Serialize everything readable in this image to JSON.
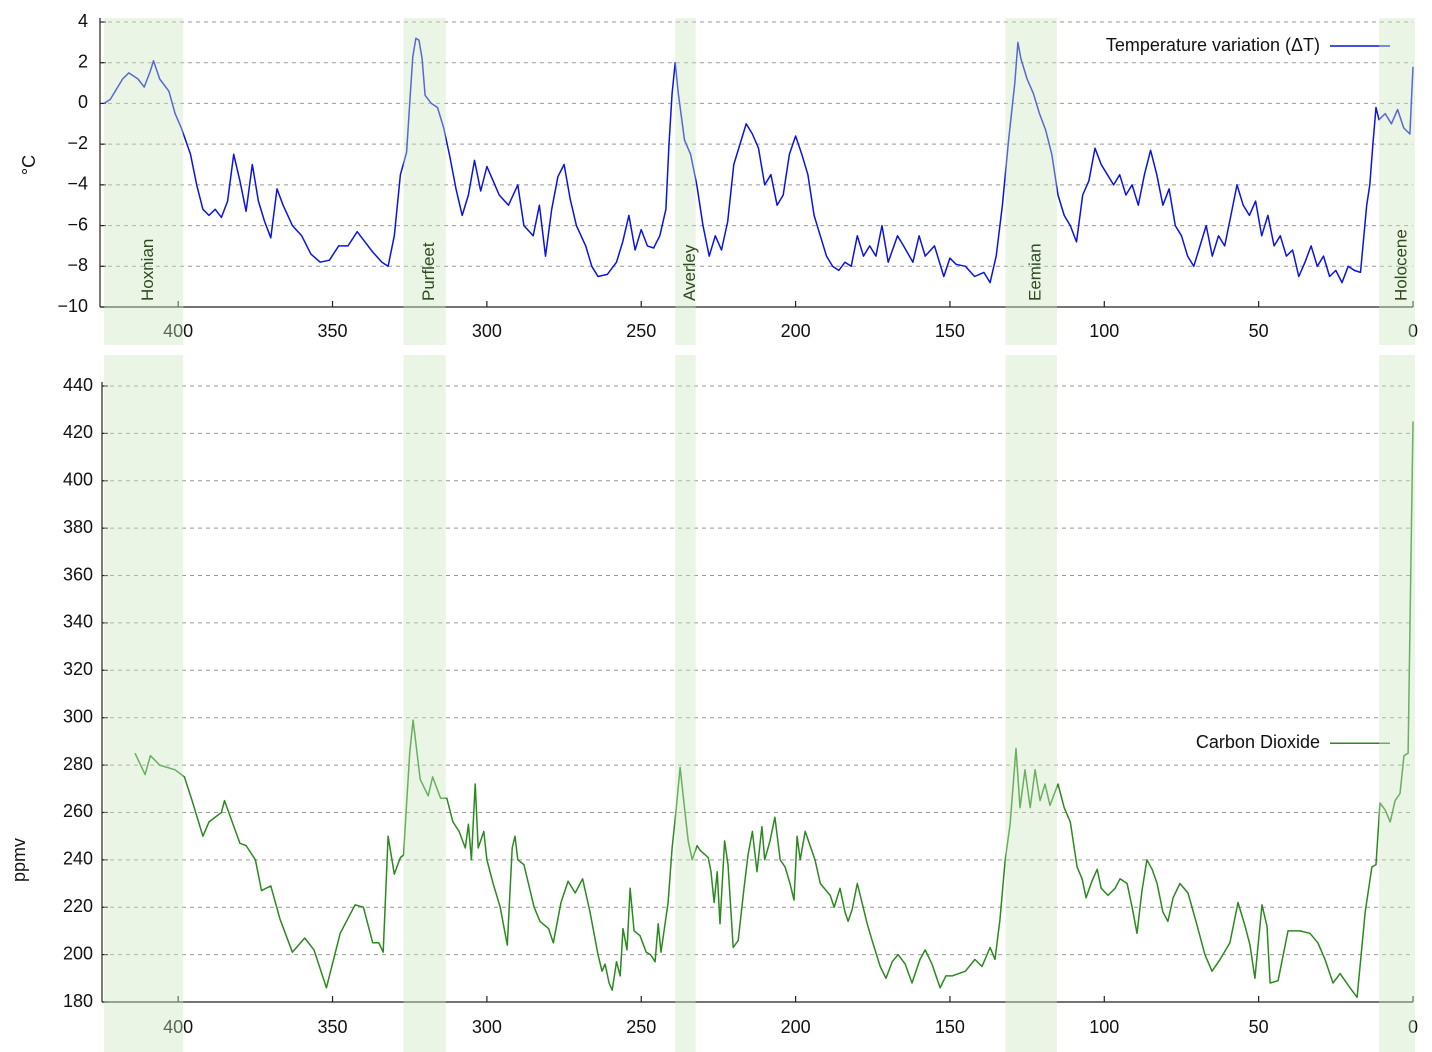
{
  "chart_data": [
    {
      "type": "line",
      "ylabel": "°C",
      "legend": "upper right",
      "grid": true,
      "xlim": [
        425,
        0
      ],
      "xticks": [
        400,
        350,
        300,
        250,
        200,
        150,
        100,
        50,
        0
      ],
      "ylim": [
        -10,
        4
      ],
      "yticks": [
        {
          "value": -10,
          "label": "−10"
        },
        {
          "value": -8,
          "label": "−8"
        },
        {
          "value": -6,
          "label": "−6"
        },
        {
          "value": -4,
          "label": "−4"
        },
        {
          "value": -2,
          "label": "−2"
        },
        0,
        2,
        4
      ],
      "bands": [
        {
          "label": "Hoxnian",
          "start": 424,
          "end": 399
        },
        {
          "label": "Purfleet",
          "start": 327,
          "end": 314
        },
        {
          "label": "Averley",
          "start": 239,
          "end": 233
        },
        {
          "label": "Eemian",
          "start": 132,
          "end": 116
        },
        {
          "label": "Holocene",
          "start": 11,
          "end": 0
        }
      ],
      "x": [
        424,
        422,
        418,
        416,
        413,
        411,
        409,
        408,
        406,
        403,
        401,
        399,
        396,
        394,
        392,
        390,
        388,
        386,
        384,
        382,
        380,
        378,
        376,
        374,
        372,
        370,
        368,
        366,
        363,
        360,
        357,
        354,
        351,
        348,
        345,
        342,
        340,
        337,
        334,
        332,
        330,
        328,
        326,
        325,
        324,
        323,
        322,
        321,
        320,
        318,
        316,
        314,
        312,
        310,
        308,
        306,
        304,
        302,
        300,
        298,
        296,
        293,
        290,
        288,
        285,
        283,
        281,
        279,
        277,
        275,
        273,
        271,
        268,
        266,
        264,
        261,
        258,
        256,
        254,
        252,
        250,
        248,
        246,
        244,
        242,
        241,
        240,
        239,
        238,
        236,
        234,
        232,
        230,
        228,
        226,
        224,
        222,
        220,
        218,
        216,
        214,
        212,
        210,
        208,
        206,
        204,
        202,
        200,
        198,
        196,
        194,
        192,
        190,
        188,
        186,
        184,
        182,
        180,
        178,
        176,
        174,
        172,
        170,
        167,
        165,
        162,
        160,
        158,
        155,
        152,
        150,
        148,
        145,
        142,
        139,
        137,
        135,
        133,
        131,
        129,
        128,
        127,
        125,
        123,
        121,
        119,
        117,
        115,
        113,
        111,
        109,
        107,
        105,
        103,
        101,
        99,
        97,
        95,
        93,
        91,
        89,
        87,
        85,
        83,
        81,
        79,
        77,
        75,
        73,
        71,
        69,
        67,
        65,
        63,
        61,
        59,
        57,
        55,
        53,
        51,
        49,
        47,
        45,
        43,
        41,
        39,
        37,
        35,
        33,
        31,
        29,
        27,
        25,
        23,
        21,
        19,
        17,
        15,
        14,
        13,
        12,
        11,
        9,
        7,
        5,
        3,
        1,
        0
      ],
      "series": [
        {
          "name": "Temperature variation (ΔT)",
          "color": "#0a14e0",
          "values": [
            0,
            0.2,
            1.2,
            1.5,
            1.2,
            0.8,
            1.6,
            2.1,
            1.2,
            0.6,
            -0.5,
            -1.2,
            -2.5,
            -4.0,
            -5.2,
            -5.5,
            -5.2,
            -5.6,
            -4.8,
            -2.5,
            -3.8,
            -5.3,
            -3.0,
            -4.8,
            -5.8,
            -6.6,
            -4.2,
            -5.0,
            -6.0,
            -6.5,
            -7.4,
            -7.8,
            -7.7,
            -7.0,
            -7.0,
            -6.3,
            -6.7,
            -7.3,
            -7.8,
            -8.0,
            -6.5,
            -3.5,
            -2.4,
            0,
            2.3,
            3.2,
            3.1,
            2.2,
            0.4,
            0.0,
            -0.2,
            -1.2,
            -2.6,
            -4.2,
            -5.5,
            -4.5,
            -2.8,
            -4.3,
            -3.1,
            -3.8,
            -4.5,
            -5.0,
            -4.0,
            -6.0,
            -6.5,
            -5.0,
            -7.5,
            -5.2,
            -3.6,
            -3.0,
            -4.7,
            -6.0,
            -7.0,
            -8.0,
            -8.5,
            -8.4,
            -7.8,
            -6.8,
            -5.5,
            -7.2,
            -6.2,
            -7.0,
            -7.1,
            -6.5,
            -5.2,
            -2.0,
            0.5,
            2.0,
            0.5,
            -1.8,
            -2.5,
            -4.0,
            -6.0,
            -7.5,
            -6.5,
            -7.2,
            -5.8,
            -3.0,
            -2.0,
            -1.0,
            -1.5,
            -2.2,
            -4.0,
            -3.5,
            -5.0,
            -4.5,
            -2.5,
            -1.6,
            -2.5,
            -3.5,
            -5.5,
            -6.5,
            -7.5,
            -8.0,
            -8.2,
            -7.8,
            -8.0,
            -6.5,
            -7.5,
            -7.0,
            -7.5,
            -6.0,
            -7.8,
            -6.5,
            -7.0,
            -7.8,
            -6.5,
            -7.5,
            -7.0,
            -8.5,
            -7.6,
            -7.9,
            -8.0,
            -8.5,
            -8.3,
            -8.8,
            -7.5,
            -5.0,
            -1.8,
            1.0,
            3.0,
            2.2,
            1.2,
            0.5,
            -0.5,
            -1.3,
            -2.5,
            -4.5,
            -5.5,
            -6.0,
            -6.8,
            -4.5,
            -3.8,
            -2.2,
            -3.0,
            -3.5,
            -4.0,
            -3.5,
            -4.5,
            -4.0,
            -5.0,
            -3.5,
            -2.3,
            -3.5,
            -5.0,
            -4.2,
            -6.0,
            -6.5,
            -7.5,
            -8.0,
            -7.0,
            -6.0,
            -7.5,
            -6.5,
            -7.0,
            -5.5,
            -4.0,
            -5.0,
            -5.5,
            -4.8,
            -6.5,
            -5.5,
            -7.0,
            -6.5,
            -7.5,
            -7.2,
            -8.5,
            -7.8,
            -7.0,
            -8.0,
            -7.5,
            -8.5,
            -8.2,
            -8.8,
            -8.0,
            -8.2,
            -8.3,
            -5.0,
            -4.0,
            -2.0,
            -0.2,
            -0.8,
            -0.5,
            -1.0,
            -0.3,
            -1.2,
            -1.5,
            1.8
          ]
        }
      ]
    },
    {
      "type": "line",
      "ylabel": "ppmv",
      "legend": "center right",
      "grid": true,
      "xlim": [
        425,
        0
      ],
      "xticks": [
        400,
        350,
        300,
        250,
        200,
        150,
        100,
        50,
        0
      ],
      "ylim": [
        180,
        440
      ],
      "yticks": [
        180,
        200,
        220,
        240,
        260,
        280,
        300,
        320,
        340,
        360,
        380,
        400,
        420,
        440
      ],
      "x": [
        414,
        410.7,
        409,
        406,
        401,
        398,
        395.5,
        392,
        390,
        386,
        385,
        380,
        378,
        375,
        373,
        370,
        367,
        363,
        359,
        356,
        352,
        347.5,
        342.7,
        340,
        337,
        335,
        333.6,
        332,
        330,
        328,
        327,
        325,
        323.9,
        321.6,
        319,
        317.6,
        315,
        313,
        311,
        309,
        307,
        306,
        305,
        303.8,
        302.8,
        301,
        300,
        298,
        295.7,
        293.4,
        291.8,
        290.9,
        290,
        288,
        284.7,
        282.8,
        280,
        278.5,
        276,
        273.7,
        271.4,
        269,
        266.6,
        264,
        262.7,
        261.7,
        260.4,
        259.4,
        258,
        256.8,
        255.9,
        254.6,
        253.6,
        252.3,
        250.4,
        248.4,
        247,
        245.5,
        244.5,
        243.6,
        241.3,
        240,
        238.7,
        237.4,
        236,
        234.8,
        233.5,
        231.9,
        230.9,
        228.3,
        227.4,
        226.4,
        225.4,
        224.5,
        223,
        221.9,
        220.2,
        218.6,
        216.7,
        215.4,
        214,
        212.5,
        210.9,
        210,
        208.3,
        206.7,
        205,
        203.4,
        201.8,
        200.5,
        199.5,
        198.5,
        196.9,
        195.3,
        193.7,
        192,
        188.8,
        187.5,
        185.6,
        184,
        183,
        181.7,
        180,
        178.5,
        176.8,
        175.2,
        172.6,
        170.7,
        168.7,
        166.8,
        164.5,
        162.3,
        159.7,
        158,
        155.8,
        153.2,
        151.3,
        149.3,
        145,
        141.9,
        139.6,
        137,
        135.4,
        133.8,
        132.1,
        130.5,
        128.6,
        127.3,
        125.7,
        124,
        122.4,
        120.8,
        119.2,
        117.6,
        115,
        113,
        111,
        108.8,
        107.2,
        105.9,
        104,
        102.3,
        101,
        98.8,
        96.5,
        94.9,
        92.6,
        91,
        89.4,
        87.8,
        86.2,
        84.5,
        82.9,
        81,
        79.4,
        77.7,
        75.5,
        72.9,
        70.3,
        67.4,
        65.1,
        62.5,
        59.3,
        56.7,
        54.4,
        52.8,
        51.2,
        48.9,
        47.3,
        46.3,
        43.7,
        40.5,
        36.6,
        33.4,
        30.8,
        28.5,
        25.9,
        23.6,
        20.4,
        18.1,
        15.5,
        13.3,
        12,
        10.7,
        9,
        7.4,
        5.8,
        4.2,
        2.9,
        1.6,
        0
      ],
      "series": [
        {
          "name": "Carbon Dioxide",
          "color": "#2a8a1e",
          "values": [
            285,
            276,
            284,
            280,
            278,
            275,
            265,
            250,
            256,
            260,
            265,
            247,
            246,
            240,
            227,
            229,
            215,
            201,
            207,
            202,
            186,
            209,
            221,
            220,
            205,
            205,
            201,
            250,
            234,
            241,
            242,
            285,
            299,
            274,
            267,
            275,
            266,
            266,
            256,
            252,
            245,
            255,
            240,
            272,
            245,
            252,
            240,
            230,
            220,
            204,
            245,
            250,
            240,
            238,
            220,
            214,
            211,
            205,
            222,
            231,
            226,
            232,
            218,
            200,
            193,
            196,
            188,
            185,
            197,
            191,
            211,
            202,
            228,
            210,
            208,
            201,
            200,
            197,
            213,
            201,
            222,
            245,
            261,
            279,
            262,
            248,
            240,
            246,
            244,
            241,
            235,
            222,
            235,
            213,
            248,
            238,
            203,
            206,
            228,
            242,
            252,
            235,
            254,
            240,
            248,
            258,
            240,
            237,
            230,
            223,
            250,
            240,
            252,
            246,
            240,
            230,
            225,
            220,
            228,
            218,
            214,
            219,
            230,
            222,
            213,
            206,
            195,
            190,
            197,
            200,
            196,
            188,
            198,
            202,
            196,
            186,
            191,
            191,
            193,
            198,
            195,
            203,
            198,
            215,
            240,
            255,
            287,
            262,
            278,
            262,
            278,
            265,
            272,
            263,
            272,
            262,
            256,
            237,
            232,
            224,
            231,
            236,
            228,
            225,
            228,
            232,
            230,
            220,
            209,
            227,
            240,
            236,
            230,
            218,
            214,
            224,
            230,
            226,
            214,
            200,
            193,
            198,
            205,
            222,
            212,
            204,
            190,
            221,
            212,
            188,
            189,
            210,
            210,
            209,
            205,
            198,
            188,
            192,
            186,
            182,
            218,
            237,
            238,
            264,
            261,
            256,
            265,
            268,
            284,
            285,
            425
          ]
        }
      ]
    }
  ]
}
